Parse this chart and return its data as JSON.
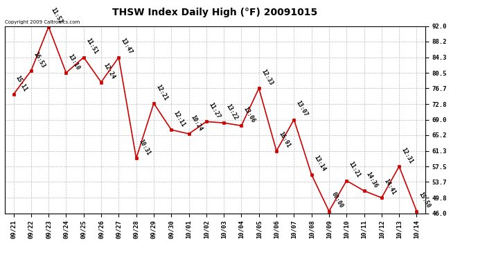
{
  "title": "THSW Index Daily High (°F) 20091015",
  "copyright": "Copyright 2009 Caltronics.com",
  "x_labels": [
    "09/21",
    "09/22",
    "09/23",
    "09/24",
    "09/25",
    "09/26",
    "09/27",
    "09/28",
    "09/29",
    "09/30",
    "10/01",
    "10/02",
    "10/03",
    "10/04",
    "10/05",
    "10/06",
    "10/07",
    "10/08",
    "10/09",
    "10/10",
    "10/11",
    "10/12",
    "10/13",
    "10/14"
  ],
  "values": [
    75.2,
    81.0,
    91.8,
    80.5,
    84.3,
    78.2,
    84.3,
    59.5,
    73.0,
    66.5,
    65.5,
    68.5,
    68.2,
    67.5,
    76.7,
    61.3,
    69.0,
    55.5,
    46.5,
    54.0,
    51.5,
    49.8,
    57.5,
    46.5
  ],
  "time_labels": [
    "15:11",
    "16:53",
    "11:52",
    "13:10",
    "11:51",
    "12:24",
    "13:47",
    "10:31",
    "12:21",
    "12:11",
    "10:24",
    "11:27",
    "13:22",
    "13:06",
    "12:33",
    "16:91",
    "13:07",
    "13:14",
    "00:00",
    "11:21",
    "14:36",
    "14:41",
    "12:31",
    "15:50"
  ],
  "ylim": [
    46.0,
    92.0
  ],
  "yticks": [
    46.0,
    49.8,
    53.7,
    57.5,
    61.3,
    65.2,
    69.0,
    72.8,
    76.7,
    80.5,
    84.3,
    88.2,
    92.0
  ],
  "line_color": "#cc0000",
  "marker_color": "#cc0000",
  "bg_color": "#ffffff",
  "grid_color": "#bbbbbb",
  "title_fontsize": 10,
  "tick_fontsize": 6.5,
  "annotation_fontsize": 6.0
}
